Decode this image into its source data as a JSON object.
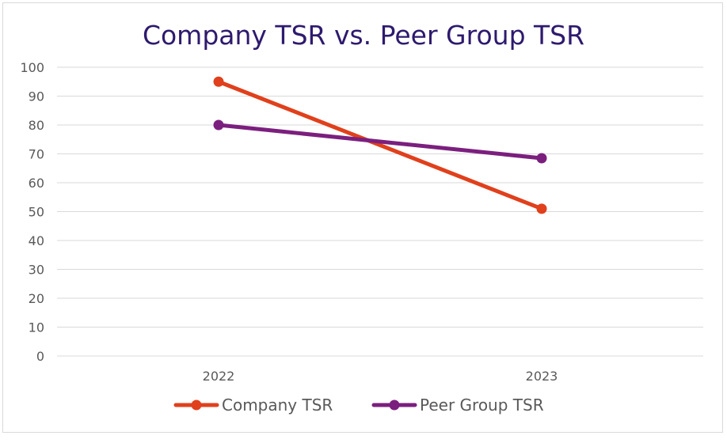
{
  "chart_data": {
    "type": "line",
    "title": "Company TSR vs. Peer Group TSR",
    "categories": [
      "2022",
      "2023"
    ],
    "ylim": [
      0,
      100
    ],
    "yticks": [
      0,
      10,
      20,
      30,
      40,
      50,
      60,
      70,
      80,
      90,
      100
    ],
    "grid": true,
    "legend_position": "bottom",
    "xlabel": "",
    "ylabel": "",
    "series": [
      {
        "name": "Company TSR",
        "values": [
          95,
          51
        ],
        "color": "#e0401c"
      },
      {
        "name": "Peer Group TSR",
        "values": [
          80,
          68.5
        ],
        "color": "#7b1f7e"
      }
    ]
  }
}
